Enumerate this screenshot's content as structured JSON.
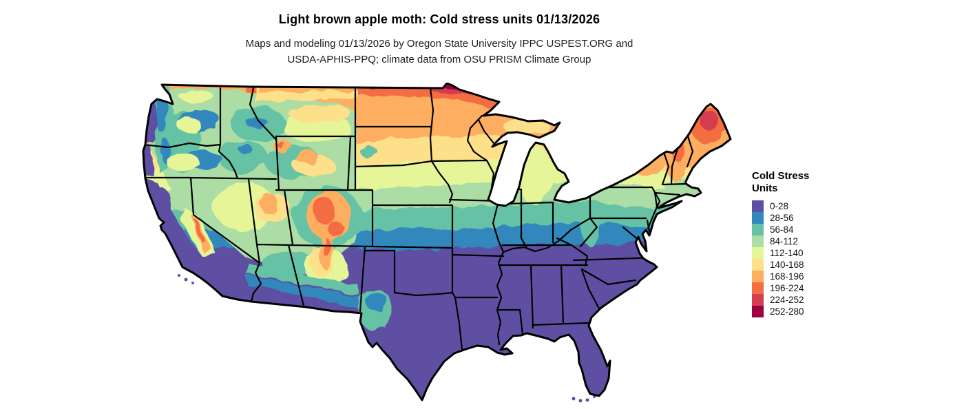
{
  "header": {
    "title": "Light brown apple moth: Cold stress units 01/13/2026",
    "subtitle_line1": "Maps and modeling 01/13/2026 by Oregon State University IPPC USPEST.ORG and",
    "subtitle_line2": "USDA-APHIS-PPQ; climate data from OSU PRISM Climate Group"
  },
  "legend": {
    "title_line1": "Cold Stress",
    "title_line2": "Units",
    "items": [
      {
        "label": "0-28",
        "range_min": 0,
        "range_max": 28,
        "color": "#5e4fa2"
      },
      {
        "label": "28-56",
        "range_min": 28,
        "range_max": 56,
        "color": "#3288bd"
      },
      {
        "label": "56-84",
        "range_min": 56,
        "range_max": 84,
        "color": "#66c2a5"
      },
      {
        "label": "84-112",
        "range_min": 84,
        "range_max": 112,
        "color": "#abdda4"
      },
      {
        "label": "112-140",
        "range_min": 112,
        "range_max": 140,
        "color": "#e6f598"
      },
      {
        "label": "140-168",
        "range_min": 140,
        "range_max": 168,
        "color": "#fee08b"
      },
      {
        "label": "168-196",
        "range_min": 168,
        "range_max": 196,
        "color": "#fdae61"
      },
      {
        "label": "196-224",
        "range_min": 196,
        "range_max": 224,
        "color": "#f46d43"
      },
      {
        "label": "224-252",
        "range_min": 224,
        "range_max": 252,
        "color": "#d53e4f"
      },
      {
        "label": "252-280",
        "range_min": 252,
        "range_max": 280,
        "color": "#9e0142"
      }
    ]
  },
  "map": {
    "kind": "choropleth raster map with state boundaries",
    "area": "Contiguous United States",
    "variable": "Cold stress units",
    "date": "01/13/2026"
  }
}
